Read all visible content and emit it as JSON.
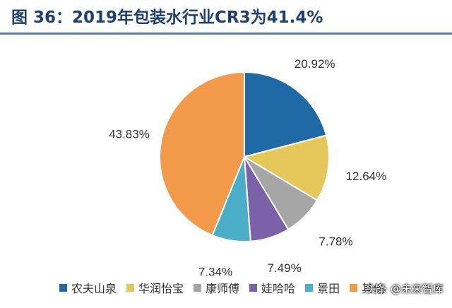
{
  "header": {
    "title": "图 36：2019年包装水行业CR3为41.4%"
  },
  "watermark": "头条 @未来智库",
  "chart_data": {
    "type": "pie",
    "title": "",
    "start_angle_deg": 90,
    "direction": "clockwise",
    "slices": [
      {
        "name": "农夫山泉",
        "value": 20.92,
        "label": "20.92%",
        "color": "#1f6aa5"
      },
      {
        "name": "华润怡宝",
        "value": 12.64,
        "label": "12.64%",
        "color": "#e6c75a"
      },
      {
        "name": "康师傅",
        "value": 7.78,
        "label": "7.78%",
        "color": "#a6a6a6"
      },
      {
        "name": "娃哈哈",
        "value": 7.49,
        "label": "7.49%",
        "color": "#7b62a8"
      },
      {
        "name": "景田",
        "value": 7.34,
        "label": "7.34%",
        "color": "#4aaec9"
      },
      {
        "name": "其他",
        "value": 43.83,
        "label": "43.83%",
        "color": "#f39a4a"
      }
    ],
    "legend_position": "bottom"
  }
}
